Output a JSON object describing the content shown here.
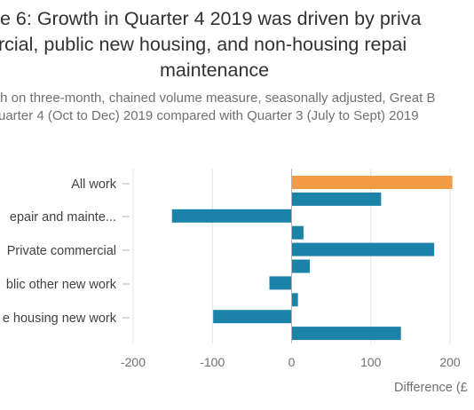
{
  "chart_data": {
    "type": "bar",
    "orientation": "horizontal",
    "title_lines": [
      "e 6: Growth in Quarter 4 2019 was driven by priva",
      "rcial, public new housing, and non-housing repai",
      "maintenance"
    ],
    "subtitle_lines": [
      "th on three-month, chained volume measure, seasonally adjusted, Great B",
      "uarter 4 (Oct to Dec) 2019 compared with Quarter 3 (July to Sept) 2019"
    ],
    "xlabel": "Difference (£",
    "xlim": [
      -200,
      200
    ],
    "x_ticks": [
      -200,
      -100,
      0,
      100,
      200
    ],
    "tick_labels": [
      "-200",
      "-100",
      "0",
      "100",
      "200"
    ],
    "category_labels": [
      "All work",
      "epair and mainte...",
      "Private commercial",
      "blic other new work",
      "e housing new work"
    ],
    "grid": true,
    "bars": [
      {
        "value": 203,
        "color": "#f39c46"
      },
      {
        "value": 113,
        "color": "#1b82a8"
      },
      {
        "value": -151,
        "color": "#1b82a8"
      },
      {
        "value": 15,
        "color": "#1b82a8"
      },
      {
        "value": 180,
        "color": "#1b82a8"
      },
      {
        "value": 23,
        "color": "#1b82a8"
      },
      {
        "value": -28,
        "color": "#1b82a8"
      },
      {
        "value": 8,
        "color": "#1b82a8"
      },
      {
        "value": -99,
        "color": "#1b82a8"
      },
      {
        "value": 138,
        "color": "#1b82a8"
      }
    ]
  }
}
